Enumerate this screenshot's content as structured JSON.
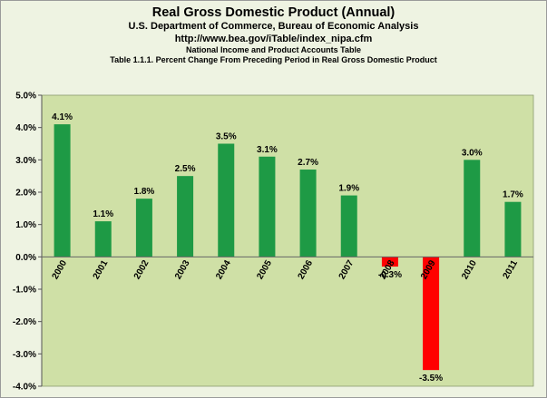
{
  "header": {
    "title": "Real Gross Domestic Product (Annual)",
    "subtitle": "U.S. Department of Commerce, Bureau of Economic Analysis",
    "url": "http://www.bea.gov/iTable/index_nipa.cfm",
    "source_line": "National Income and Product Accounts Table",
    "table_line": "Table 1.1.1. Percent Change From Preceding Period in Real Gross Domestic Product"
  },
  "chart_data": {
    "type": "bar",
    "title": "Real Gross Domestic Product (Annual)",
    "xlabel": "",
    "ylabel": "",
    "categories": [
      "2000",
      "2001",
      "2002",
      "2003",
      "2004",
      "2005",
      "2006",
      "2007",
      "2008",
      "2009",
      "2010",
      "2011"
    ],
    "values": [
      4.1,
      1.1,
      1.8,
      2.5,
      3.5,
      3.1,
      2.7,
      1.9,
      -0.3,
      -3.5,
      3.0,
      1.7
    ],
    "data_labels": [
      "4.1%",
      "1.1%",
      "1.8%",
      "2.5%",
      "3.5%",
      "3.1%",
      "2.7%",
      "1.9%",
      "-0.3%",
      "-3.5%",
      "3.0%",
      "1.7%"
    ],
    "ylim": [
      -4.0,
      5.0
    ],
    "yticks": [
      5.0,
      4.0,
      3.0,
      2.0,
      1.0,
      0.0,
      -1.0,
      -2.0,
      -3.0,
      -4.0
    ],
    "ytick_labels": [
      "5.0%",
      "4.0%",
      "3.0%",
      "2.0%",
      "1.0%",
      "0.0%",
      "-1.0%",
      "-2.0%",
      "-3.0%",
      "-4.0%"
    ],
    "grid": false,
    "legend": "none",
    "colors": {
      "positive": "#1e9a45",
      "negative": "#ff0000",
      "plot_background": "#cfe0a6",
      "outer_background": "#eef3e2"
    }
  }
}
